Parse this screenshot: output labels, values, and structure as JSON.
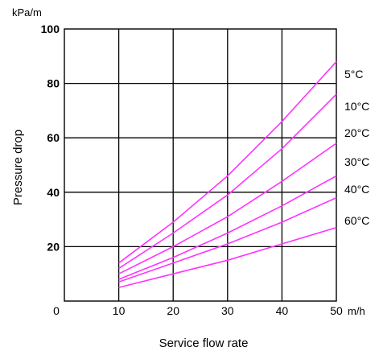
{
  "chart_data": {
    "type": "line",
    "xlabel": "Service flow rate",
    "ylabel": "Pressure drop",
    "x_unit": "m/h",
    "y_unit": "kPa/m",
    "xlim": [
      0,
      50
    ],
    "ylim": [
      0,
      100
    ],
    "x_ticks": [
      "0",
      "10",
      "20",
      "30",
      "40",
      "50"
    ],
    "y_ticks": [
      "20",
      "40",
      "60",
      "80",
      "100"
    ],
    "grid": true,
    "line_color": "#ff33ff",
    "series": [
      {
        "name": "5°C",
        "x": [
          10,
          20,
          30,
          40,
          50
        ],
        "y": [
          14,
          29,
          46,
          66,
          88
        ]
      },
      {
        "name": "10°C",
        "x": [
          10,
          20,
          30,
          40,
          50
        ],
        "y": [
          12,
          25,
          39,
          56,
          76
        ]
      },
      {
        "name": "20°C",
        "x": [
          10,
          20,
          30,
          40,
          50
        ],
        "y": [
          10,
          20,
          31,
          44,
          58
        ]
      },
      {
        "name": "30°C",
        "x": [
          10,
          20,
          30,
          40,
          50
        ],
        "y": [
          8,
          16,
          25,
          35,
          46
        ]
      },
      {
        "name": "40°C",
        "x": [
          10,
          20,
          30,
          40,
          50
        ],
        "y": [
          7,
          14,
          21,
          29,
          38
        ]
      },
      {
        "name": "60°C",
        "x": [
          10,
          20,
          30,
          40,
          50
        ],
        "y": [
          5,
          10,
          15,
          21,
          27
        ]
      }
    ]
  }
}
